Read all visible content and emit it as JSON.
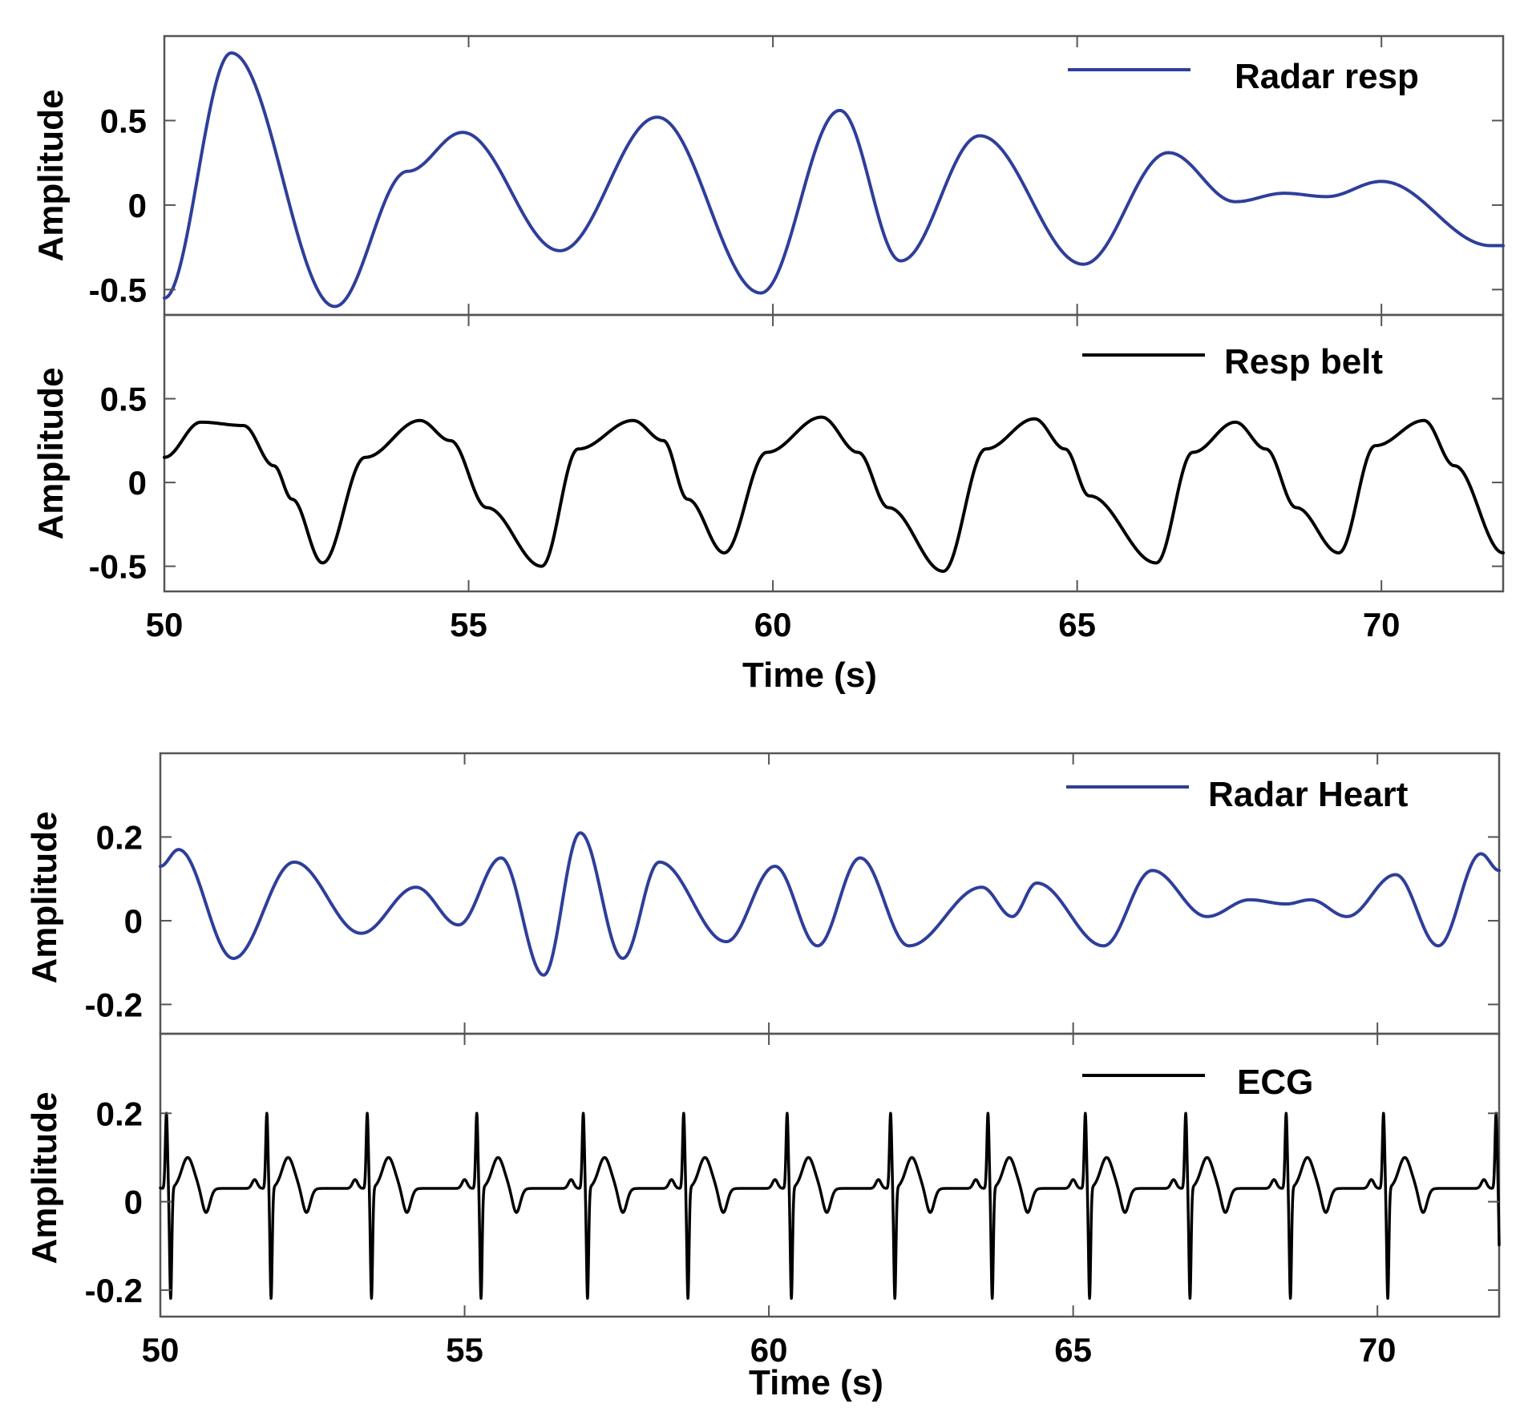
{
  "colors": {
    "radar": "#2E3E9A",
    "reference": "#000000",
    "axes": "#555555"
  },
  "x_axis_label": "Time (s)",
  "y_axis_label": "Amplitude",
  "chart_data": [
    {
      "type": "line",
      "legend": "Radar resp",
      "ylabel": "Amplitude",
      "xlim": [
        50,
        72
      ],
      "ylim": [
        -0.65,
        1.0
      ],
      "xticks": [
        50,
        55,
        60,
        65,
        70
      ],
      "yticks": [
        -0.5,
        0,
        0.5
      ],
      "ytick_labels": [
        "-0.5",
        "0",
        "0.5"
      ],
      "grid": false,
      "legend_position": "top-right",
      "color": "#2E3E9A",
      "keypoints": [
        [
          50.0,
          -0.55
        ],
        [
          51.1,
          0.9
        ],
        [
          52.8,
          -0.6
        ],
        [
          54.0,
          0.2
        ],
        [
          54.9,
          0.43
        ],
        [
          56.5,
          -0.27
        ],
        [
          58.1,
          0.52
        ],
        [
          59.8,
          -0.52
        ],
        [
          61.1,
          0.56
        ],
        [
          62.1,
          -0.33
        ],
        [
          63.4,
          0.41
        ],
        [
          65.1,
          -0.35
        ],
        [
          66.5,
          0.31
        ],
        [
          67.6,
          0.02
        ],
        [
          68.4,
          0.07
        ],
        [
          69.1,
          0.05
        ],
        [
          70.0,
          0.14
        ],
        [
          71.8,
          -0.24
        ]
      ]
    },
    {
      "type": "line",
      "legend": "Resp belt",
      "ylabel": "Amplitude",
      "xlim": [
        50,
        72
      ],
      "ylim": [
        -0.65,
        1.0
      ],
      "xticks": [
        50,
        55,
        60,
        65,
        70
      ],
      "xtick_labels": [
        "50",
        "55",
        "60",
        "65",
        "70"
      ],
      "xlabel": "Time (s)",
      "yticks": [
        -0.5,
        0,
        0.5
      ],
      "ytick_labels": [
        "-0.5",
        "0",
        "0.5"
      ],
      "grid": false,
      "legend_position": "top-right",
      "color": "#000000",
      "keypoints": [
        [
          50.0,
          0.15
        ],
        [
          50.6,
          0.36
        ],
        [
          51.3,
          0.34
        ],
        [
          51.8,
          0.1
        ],
        [
          52.1,
          -0.1
        ],
        [
          52.6,
          -0.48
        ],
        [
          53.3,
          0.15
        ],
        [
          54.2,
          0.37
        ],
        [
          54.7,
          0.25
        ],
        [
          55.3,
          -0.15
        ],
        [
          56.2,
          -0.5
        ],
        [
          56.8,
          0.2
        ],
        [
          57.7,
          0.37
        ],
        [
          58.2,
          0.25
        ],
        [
          58.6,
          -0.1
        ],
        [
          59.2,
          -0.42
        ],
        [
          59.9,
          0.18
        ],
        [
          60.8,
          0.39
        ],
        [
          61.4,
          0.18
        ],
        [
          61.9,
          -0.15
        ],
        [
          62.8,
          -0.53
        ],
        [
          63.5,
          0.2
        ],
        [
          64.3,
          0.38
        ],
        [
          64.8,
          0.2
        ],
        [
          65.2,
          -0.08
        ],
        [
          66.3,
          -0.48
        ],
        [
          66.9,
          0.18
        ],
        [
          67.6,
          0.36
        ],
        [
          68.1,
          0.2
        ],
        [
          68.6,
          -0.15
        ],
        [
          69.3,
          -0.42
        ],
        [
          69.9,
          0.22
        ],
        [
          70.7,
          0.37
        ],
        [
          71.2,
          0.1
        ],
        [
          72.0,
          -0.42
        ]
      ]
    },
    {
      "type": "line",
      "legend": "Radar Heart",
      "ylabel": "Amplitude",
      "xlim": [
        50,
        72
      ],
      "ylim": [
        -0.27,
        0.4
      ],
      "xticks": [
        50,
        55,
        60,
        65,
        70
      ],
      "yticks": [
        -0.2,
        0,
        0.2
      ],
      "ytick_labels": [
        "-0.2",
        "0",
        "0.2"
      ],
      "grid": false,
      "legend_position": "top-right",
      "color": "#2E3E9A",
      "keypoints": [
        [
          50.0,
          0.13
        ],
        [
          50.3,
          0.17
        ],
        [
          51.2,
          -0.09
        ],
        [
          52.2,
          0.14
        ],
        [
          53.3,
          -0.03
        ],
        [
          54.2,
          0.08
        ],
        [
          54.9,
          -0.01
        ],
        [
          55.6,
          0.15
        ],
        [
          56.3,
          -0.13
        ],
        [
          56.9,
          0.21
        ],
        [
          57.6,
          -0.09
        ],
        [
          58.2,
          0.14
        ],
        [
          59.3,
          -0.05
        ],
        [
          60.1,
          0.13
        ],
        [
          60.8,
          -0.06
        ],
        [
          61.5,
          0.15
        ],
        [
          62.3,
          -0.06
        ],
        [
          63.5,
          0.08
        ],
        [
          64.0,
          0.01
        ],
        [
          64.4,
          0.09
        ],
        [
          65.5,
          -0.06
        ],
        [
          66.3,
          0.12
        ],
        [
          67.2,
          0.01
        ],
        [
          67.9,
          0.05
        ],
        [
          68.5,
          0.04
        ],
        [
          68.9,
          0.05
        ],
        [
          69.5,
          0.01
        ],
        [
          70.3,
          0.11
        ],
        [
          71.0,
          -0.06
        ],
        [
          71.7,
          0.16
        ],
        [
          72.0,
          0.12
        ]
      ]
    },
    {
      "type": "line",
      "legend": "ECG",
      "ylabel": "Amplitude",
      "xlim": [
        50,
        72
      ],
      "ylim": [
        -0.26,
        0.38
      ],
      "xticks": [
        50,
        55,
        60,
        65,
        70
      ],
      "xtick_labels": [
        "50",
        "55",
        "60",
        "65",
        "70"
      ],
      "xlabel": "Time (s)",
      "yticks": [
        -0.2,
        0,
        0.2
      ],
      "ytick_labels": [
        "-0.2",
        "0",
        "0.2"
      ],
      "grid": false,
      "legend_position": "top-right",
      "color": "#000000",
      "r_peak_times": [
        50.1,
        51.75,
        53.4,
        55.2,
        56.95,
        58.6,
        60.3,
        62.0,
        63.6,
        65.2,
        66.85,
        68.5,
        70.1,
        71.95
      ],
      "r_peak_amplitude": 0.22,
      "s_trough_amplitude": -0.2,
      "baseline": 0.05
    }
  ]
}
